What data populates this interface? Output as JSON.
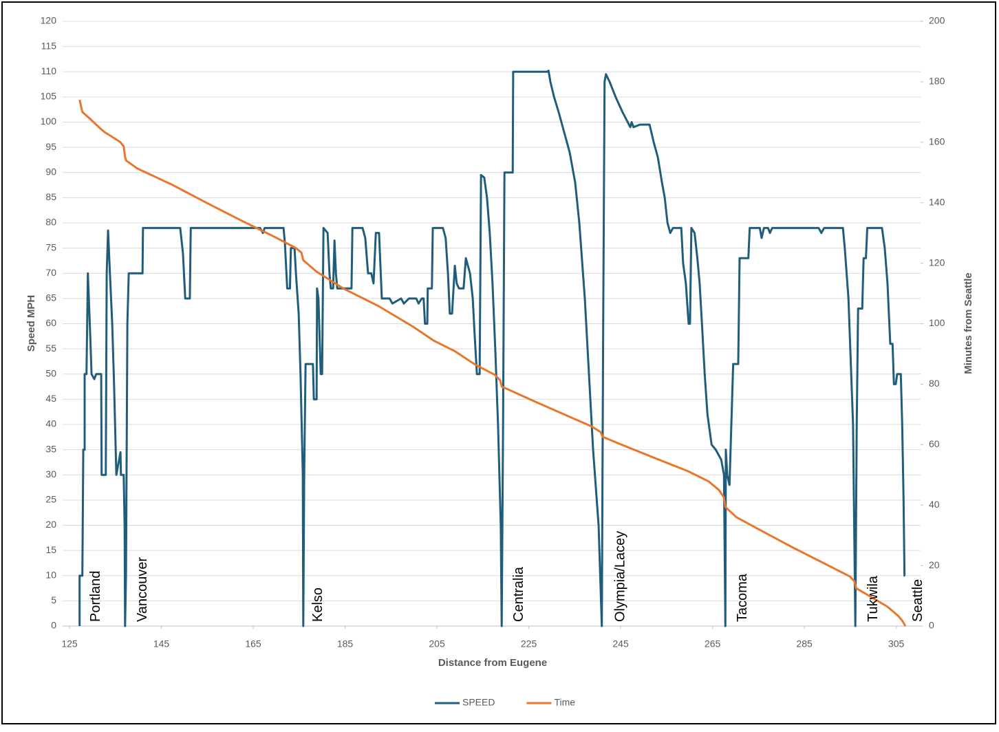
{
  "chart_data": {
    "type": "line",
    "x_label": "Distance from Eugene",
    "y_label": "Speed MPH",
    "y2_label": "Minutes from Seattle",
    "xlim": [
      123.5,
      310.3
    ],
    "xticks": [
      125,
      145,
      165,
      185,
      205,
      225,
      245,
      265,
      285,
      305
    ],
    "ylim": [
      0,
      120
    ],
    "yticks": [
      0,
      5,
      10,
      15,
      20,
      25,
      30,
      35,
      40,
      45,
      50,
      55,
      60,
      65,
      70,
      75,
      80,
      85,
      90,
      95,
      100,
      105,
      110,
      115,
      120
    ],
    "y2lim": [
      0,
      200
    ],
    "y2ticks": [
      0,
      20,
      40,
      60,
      80,
      100,
      120,
      140,
      160,
      180,
      200
    ],
    "grid": true,
    "legend": "bottom",
    "annotations": [
      {
        "text": "Portland",
        "x": 130.8
      },
      {
        "text": "Vancouver",
        "x": 141.0
      },
      {
        "text": "Kelso",
        "x": 179.2
      },
      {
        "text": "Centralia",
        "x": 222.9
      },
      {
        "text": "Olympia/Lacey",
        "x": 245.0
      },
      {
        "text": "Tacoma",
        "x": 271.6
      },
      {
        "text": "Tukwila",
        "x": 300.1
      },
      {
        "text": "Seattle",
        "x": 309.8
      }
    ],
    "series": [
      {
        "name": "SPEED",
        "color": "#1f5d7a",
        "axis": "y",
        "x": [
          127.2,
          127.2,
          127.8,
          128.0,
          128.3,
          128.3,
          128.7,
          129.0,
          129.5,
          129.8,
          130.4,
          130.8,
          131.9,
          132.0,
          132.9,
          133.1,
          133.4,
          133.8,
          134.3,
          134.7,
          135.2,
          136.1,
          136.2,
          136.8,
          137.0,
          137.1,
          137.3,
          137.6,
          137.9,
          140.9,
          141.0,
          149.1,
          149.7,
          150.2,
          151.2,
          151.4,
          166.5,
          167.1,
          167.5,
          171.6,
          171.9,
          172.4,
          173.0,
          173.2,
          174.0,
          174.3,
          174.9,
          175.3,
          175.8,
          175.9,
          176.1,
          176.4,
          178.0,
          178.2,
          178.8,
          178.9,
          179.2,
          179.7,
          180.0,
          180.3,
          181.2,
          181.6,
          181.9,
          182.4,
          182.7,
          183.0,
          183.3,
          186.4,
          186.6,
          188.8,
          189.4,
          190.0,
          190.7,
          191.2,
          191.7,
          192.4,
          193.0,
          194.7,
          195.3,
          197.2,
          197.8,
          198.9,
          200.5,
          201.0,
          201.7,
          202.1,
          202.4,
          202.9,
          203.0,
          203.9,
          204.1,
          206.3,
          206.9,
          207.4,
          207.8,
          208.3,
          208.9,
          209.3,
          209.8,
          210.8,
          211.3,
          212.2,
          212.8,
          213.2,
          213.7,
          214.3,
          214.6,
          215.3,
          215.9,
          216.5,
          217.1,
          217.7,
          218.3,
          218.9,
          219.1,
          219.4,
          219.7,
          221.5,
          221.6,
          229.0,
          229.3,
          229.7,
          230.5,
          231.5,
          232.7,
          233.9,
          235.1,
          236.0,
          237.2,
          238.1,
          239.0,
          240.2,
          240.9,
          241.2,
          241.5,
          241.8,
          242.6,
          243.9,
          245.4,
          247.1,
          247.4,
          247.8,
          249.2,
          251.3,
          252.2,
          253.1,
          254.0,
          254.6,
          255.2,
          255.8,
          256.4,
          258.2,
          258.6,
          259.2,
          259.8,
          260.1,
          260.4,
          261.1,
          261.7,
          262.2,
          262.7,
          263.3,
          263.9,
          264.8,
          265.7,
          266.9,
          267.5,
          267.8,
          267.9,
          268.2,
          268.7,
          269.0,
          269.5,
          270.6,
          270.9,
          272.8,
          273.1,
          275.3,
          275.7,
          276.2,
          277.1,
          277.5,
          278.0,
          288.1,
          288.7,
          289.3,
          293.4,
          293.8,
          294.6,
          295.0,
          295.6,
          296.1,
          296.4,
          296.7,
          297.6,
          297.9,
          298.4,
          298.7,
          301.9,
          302.5,
          303.1,
          303.7,
          304.2,
          304.5,
          304.9,
          305.2,
          306.0,
          306.3,
          306.6,
          306.8,
          306.9
        ],
        "values": [
          0,
          10,
          10,
          35,
          35,
          50,
          50,
          70,
          58,
          50,
          49,
          50,
          50,
          30,
          30,
          70,
          78.5,
          70,
          60,
          48,
          30,
          34.5,
          30,
          30,
          20,
          0,
          10,
          60,
          70,
          70,
          79,
          79,
          74,
          65,
          65,
          79,
          79,
          78,
          79,
          79,
          76,
          67,
          67,
          75,
          75,
          70,
          62,
          50,
          30,
          0,
          30,
          52,
          52,
          45,
          45,
          67,
          65,
          50,
          50,
          79,
          78,
          70,
          67,
          67,
          76.5,
          70,
          67,
          67,
          79,
          79,
          77,
          70,
          70,
          68,
          78,
          78,
          65,
          65,
          64,
          65,
          64,
          65,
          65,
          64,
          65,
          65,
          60,
          60,
          67,
          67,
          79,
          79,
          77,
          70,
          62,
          62,
          71.5,
          68,
          67,
          67,
          73,
          70,
          65,
          58,
          50,
          50,
          89.5,
          89,
          85,
          78,
          68,
          55,
          40,
          20,
          0,
          40,
          90,
          90,
          110,
          110,
          110.2,
          108,
          105,
          102,
          98,
          94,
          88,
          80,
          65,
          50,
          35,
          20,
          0,
          60,
          108,
          109.5,
          108,
          105,
          102,
          99,
          100,
          99,
          99.5,
          99.5,
          96,
          93,
          88,
          85,
          80,
          78,
          79,
          79,
          72,
          68,
          60,
          60,
          79,
          78,
          73,
          68,
          60,
          50,
          42,
          36,
          35,
          33,
          30,
          0,
          35,
          30,
          28,
          37,
          52,
          52,
          73,
          73,
          79,
          79,
          77,
          79,
          79,
          78,
          79,
          79,
          78,
          79,
          79,
          75,
          65,
          55,
          40,
          0,
          40,
          63,
          63,
          73,
          73,
          79,
          79,
          75,
          68,
          56,
          56,
          48,
          48,
          50,
          50,
          40,
          25,
          10,
          10
        ]
      },
      {
        "name": "Time",
        "color": "#e8762d",
        "axis": "y2",
        "x": [
          127.2,
          127.8,
          129.3,
          131.6,
          132.6,
          134.6,
          136.1,
          136.8,
          137.1,
          137.3,
          139.8,
          147.3,
          154.8,
          162.3,
          169.8,
          174.3,
          175.5,
          175.9,
          178.8,
          184.8,
          192.3,
          199.8,
          204.3,
          208.8,
          213.3,
          217.7,
          218.8,
          219.1,
          226.7,
          234.2,
          238.7,
          240.6,
          241.1,
          244.7,
          252.2,
          259.7,
          264.2,
          266.4,
          267.5,
          267.8,
          270.2,
          274.7,
          282.2,
          289.6,
          294.9,
          295.9,
          296.3,
          300.1,
          303.1,
          305.4,
          306.4,
          307.0
        ],
        "values": [
          174,
          170,
          168,
          164.7,
          163.4,
          161.5,
          160,
          158.6,
          155.2,
          154,
          151.3,
          146,
          140,
          134.2,
          128.6,
          125,
          123.5,
          121,
          117.2,
          111.5,
          105.8,
          99,
          94.4,
          91,
          86.5,
          83,
          81.2,
          79.2,
          74,
          69,
          66,
          64.2,
          62.6,
          60.3,
          55.7,
          51.2,
          47.8,
          45,
          42.5,
          39.4,
          36,
          32.3,
          26.2,
          20.5,
          16.4,
          14.8,
          12.5,
          9.1,
          6.4,
          3.4,
          1.6,
          0
        ]
      }
    ]
  }
}
